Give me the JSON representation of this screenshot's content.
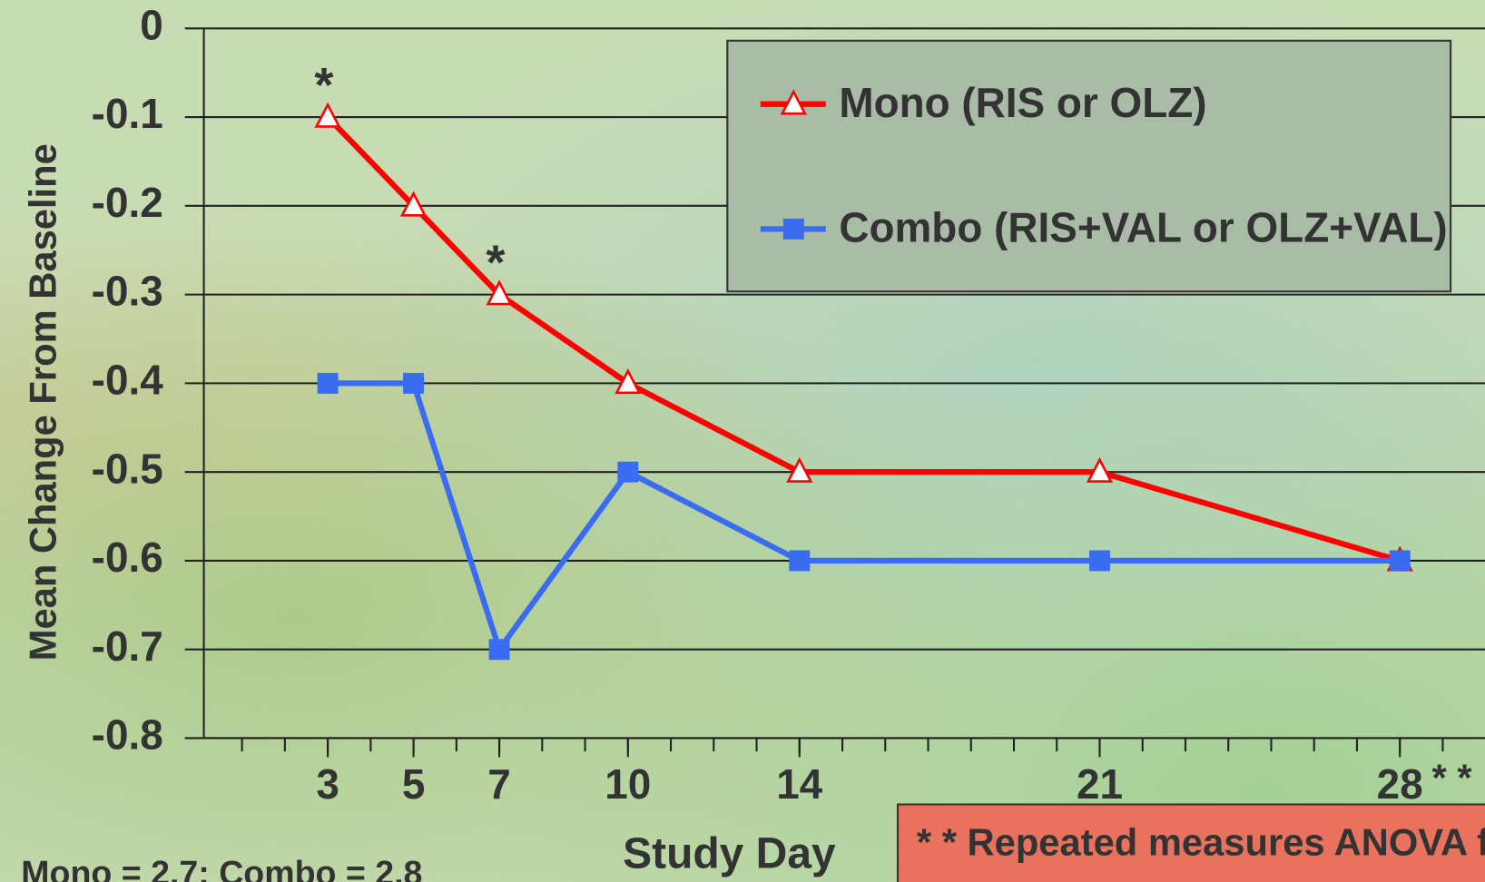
{
  "chart_data": {
    "type": "line",
    "y_label": "Mean Change From Baseline",
    "x_label": "Study Day",
    "x": [
      3,
      5,
      7,
      10,
      14,
      21,
      28
    ],
    "series": [
      {
        "name": "Mono (RIS or OLZ)",
        "color": "#ff0000",
        "marker": "triangle",
        "values": [
          -0.1,
          -0.2,
          -0.3,
          -0.4,
          -0.5,
          -0.5,
          -0.6
        ]
      },
      {
        "name": "Combo (RIS+VAL or OLZ+VAL)",
        "color": "#3a6cf2",
        "marker": "square",
        "values": [
          -0.4,
          -0.4,
          -0.7,
          -0.5,
          -0.6,
          -0.6,
          -0.6
        ]
      }
    ],
    "xlim": [
      0,
      30
    ],
    "xticks": [
      3,
      5,
      7,
      10,
      14,
      21,
      28
    ],
    "ylim": [
      -0.8,
      0
    ],
    "yticks": [
      0,
      -0.1,
      -0.2,
      -0.3,
      -0.4,
      -0.5,
      -0.6,
      -0.7,
      -0.8
    ],
    "grid": true,
    "legend": "upper right",
    "annotations": [
      {
        "text": "*",
        "x": 3,
        "y": -0.1
      },
      {
        "text": "*",
        "x": 7,
        "y": -0.3
      },
      {
        "text": "* *",
        "x": 28,
        "y": -0.8
      }
    ],
    "note": "Mono = 2.7; Combo = 2.8",
    "footnote": "* * Repeated measures ANOVA f"
  }
}
